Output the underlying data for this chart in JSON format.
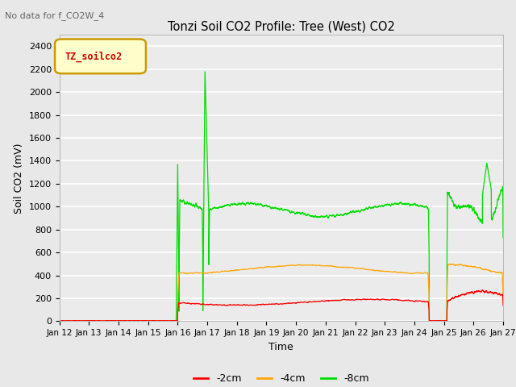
{
  "title": "Tonzi Soil CO2 Profile: Tree (West) CO2",
  "subtitle": "No data for f_CO2W_4",
  "ylabel": "Soil CO2 (mV)",
  "xlabel": "Time",
  "legend_label": "TZ_soilco2",
  "legend_entries": [
    "-2cm",
    "-4cm",
    "-8cm"
  ],
  "legend_colors": [
    "#ff0000",
    "#ffa500",
    "#00cc00"
  ],
  "ylim": [
    0,
    2500
  ],
  "yticks": [
    0,
    200,
    400,
    600,
    800,
    1000,
    1200,
    1400,
    1600,
    1800,
    2000,
    2200,
    2400
  ],
  "bg_color": "#e8e8e8",
  "plot_bg_color": "#ebebeb",
  "grid_color": "#ffffff",
  "n_points": 3600,
  "seed": 42
}
